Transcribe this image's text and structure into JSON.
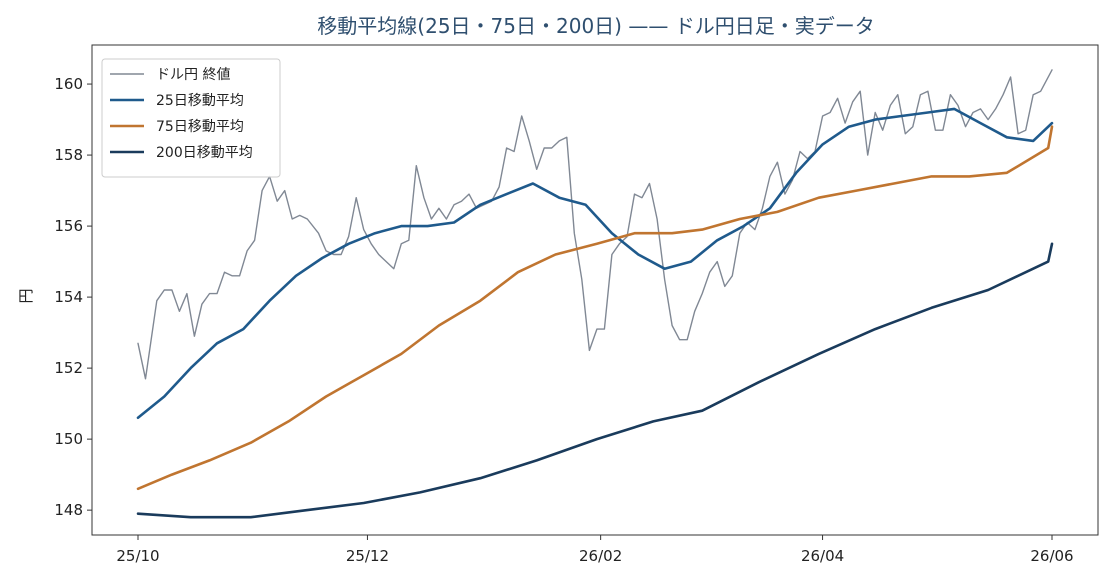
{
  "chart_data": {
    "type": "line",
    "title": "移動平均線(25日・75日・200日) —— ドル円日足・実データ",
    "xlabel": "",
    "ylabel": "円",
    "xlim": [
      "2025-10-01",
      "2026-06-01"
    ],
    "ylim": [
      147.3,
      161.1
    ],
    "x_ticks": [
      "25/10",
      "25/12",
      "26/02",
      "26/04",
      "26/06"
    ],
    "x_tick_dates": [
      "2025-10-01",
      "2025-12-01",
      "2026-02-01",
      "2026-04-01",
      "2026-06-01"
    ],
    "y_ticks": [
      148,
      150,
      152,
      154,
      156,
      158,
      160
    ],
    "grid": false,
    "legend_position": "top-left",
    "series": [
      {
        "name": "ドル円 終値",
        "color": "#808894",
        "x": [
          "2025-10-01",
          "2025-10-03",
          "2025-10-06",
          "2025-10-08",
          "2025-10-10",
          "2025-10-12",
          "2025-10-14",
          "2025-10-16",
          "2025-10-18",
          "2025-10-20",
          "2025-10-22",
          "2025-10-24",
          "2025-10-26",
          "2025-10-28",
          "2025-10-30",
          "2025-11-01",
          "2025-11-03",
          "2025-11-05",
          "2025-11-07",
          "2025-11-09",
          "2025-11-11",
          "2025-11-13",
          "2025-11-15",
          "2025-11-18",
          "2025-11-20",
          "2025-11-22",
          "2025-11-24",
          "2025-11-26",
          "2025-11-28",
          "2025-11-30",
          "2025-12-02",
          "2025-12-04",
          "2025-12-06",
          "2025-12-08",
          "2025-12-10",
          "2025-12-12",
          "2025-12-14",
          "2025-12-16",
          "2025-12-18",
          "2025-12-20",
          "2025-12-22",
          "2025-12-24",
          "2025-12-26",
          "2025-12-28",
          "2025-12-30",
          "2026-01-01",
          "2026-01-03",
          "2026-01-05",
          "2026-01-07",
          "2026-01-09",
          "2026-01-11",
          "2026-01-13",
          "2026-01-15",
          "2026-01-17",
          "2026-01-19",
          "2026-01-21",
          "2026-01-23",
          "2026-01-25",
          "2026-01-27",
          "2026-01-29",
          "2026-01-31",
          "2026-02-02",
          "2026-02-04",
          "2026-02-06",
          "2026-02-08",
          "2026-02-10",
          "2026-02-12",
          "2026-02-14",
          "2026-02-16",
          "2026-02-18",
          "2026-02-20",
          "2026-02-22",
          "2026-02-24",
          "2026-02-26",
          "2026-02-28",
          "2026-03-02",
          "2026-03-04",
          "2026-03-06",
          "2026-03-08",
          "2026-03-10",
          "2026-03-12",
          "2026-03-14",
          "2026-03-16",
          "2026-03-18",
          "2026-03-20",
          "2026-03-22",
          "2026-03-24",
          "2026-03-26",
          "2026-03-28",
          "2026-03-30",
          "2026-04-01",
          "2026-04-03",
          "2026-04-05",
          "2026-04-07",
          "2026-04-09",
          "2026-04-11",
          "2026-04-13",
          "2026-04-15",
          "2026-04-17",
          "2026-04-19",
          "2026-04-21",
          "2026-04-23",
          "2026-04-25",
          "2026-04-27",
          "2026-04-29",
          "2026-05-01",
          "2026-05-03",
          "2026-05-05",
          "2026-05-07",
          "2026-05-09",
          "2026-05-11",
          "2026-05-13",
          "2026-05-15",
          "2026-05-17",
          "2026-05-19",
          "2026-05-21",
          "2026-05-23",
          "2026-05-25",
          "2026-05-27",
          "2026-05-29",
          "2026-06-01"
        ],
        "values": [
          152.7,
          151.7,
          153.9,
          154.2,
          154.2,
          153.6,
          154.1,
          152.9,
          153.8,
          154.1,
          154.1,
          154.7,
          154.6,
          154.6,
          155.3,
          155.6,
          157.0,
          157.4,
          156.7,
          157.0,
          156.2,
          156.3,
          156.2,
          155.8,
          155.3,
          155.2,
          155.2,
          155.7,
          156.8,
          155.9,
          155.5,
          155.2,
          155.0,
          154.8,
          155.5,
          155.6,
          157.7,
          156.8,
          156.2,
          156.5,
          156.2,
          156.6,
          156.7,
          156.9,
          156.5,
          156.6,
          156.7,
          157.1,
          158.2,
          158.1,
          159.1,
          158.4,
          157.6,
          158.2,
          158.2,
          158.4,
          158.5,
          155.8,
          154.5,
          152.5,
          153.1,
          153.1,
          155.2,
          155.5,
          155.7,
          156.9,
          156.8,
          157.2,
          156.2,
          154.5,
          153.2,
          152.8,
          152.8,
          153.6,
          154.1,
          154.7,
          155.0,
          154.3,
          154.6,
          155.8,
          156.1,
          155.9,
          156.5,
          157.4,
          157.8,
          156.9,
          157.3,
          158.1,
          157.9,
          158.1,
          159.1,
          159.2,
          159.6,
          158.9,
          159.5,
          159.8,
          158.0,
          159.2,
          158.7,
          159.4,
          159.7,
          158.6,
          158.8,
          159.7,
          159.8,
          158.7,
          158.7,
          159.7,
          159.4,
          158.8,
          159.2,
          159.3,
          159.0,
          159.3,
          159.7,
          160.2,
          158.6,
          158.7,
          159.7,
          159.8,
          160.4
        ]
      },
      {
        "name": "25日移動平均",
        "color": "#1f5a8c",
        "x": [
          "2025-10-01",
          "2025-10-08",
          "2025-10-15",
          "2025-10-22",
          "2025-10-29",
          "2025-11-05",
          "2025-11-12",
          "2025-11-19",
          "2025-11-26",
          "2025-12-03",
          "2025-12-10",
          "2025-12-17",
          "2025-12-24",
          "2025-12-31",
          "2026-01-07",
          "2026-01-14",
          "2026-01-21",
          "2026-01-28",
          "2026-02-04",
          "2026-02-11",
          "2026-02-18",
          "2026-02-25",
          "2026-03-04",
          "2026-03-11",
          "2026-03-18",
          "2026-03-25",
          "2026-04-01",
          "2026-04-08",
          "2026-04-15",
          "2026-04-22",
          "2026-04-29",
          "2026-05-06",
          "2026-05-13",
          "2026-05-20",
          "2026-05-27",
          "2026-06-01"
        ],
        "values": [
          150.6,
          151.2,
          152.0,
          152.7,
          153.1,
          153.9,
          154.6,
          155.1,
          155.5,
          155.8,
          156.0,
          156.0,
          156.1,
          156.6,
          156.9,
          157.2,
          156.8,
          156.6,
          155.8,
          155.2,
          154.8,
          155.0,
          155.6,
          156.0,
          156.5,
          157.5,
          158.3,
          158.8,
          159.0,
          159.1,
          159.2,
          159.3,
          158.9,
          158.5,
          158.4,
          158.9
        ]
      },
      {
        "name": "75日移動平均",
        "color": "#c07530",
        "x": [
          "2025-10-01",
          "2025-10-10",
          "2025-10-20",
          "2025-10-31",
          "2025-11-10",
          "2025-11-20",
          "2025-11-30",
          "2025-12-10",
          "2025-12-20",
          "2025-12-31",
          "2026-01-10",
          "2026-01-20",
          "2026-01-31",
          "2026-02-10",
          "2026-02-20",
          "2026-02-28",
          "2026-03-10",
          "2026-03-20",
          "2026-03-31",
          "2026-04-10",
          "2026-04-20",
          "2026-04-30",
          "2026-05-10",
          "2026-05-20",
          "2026-05-31",
          "2026-06-01"
        ],
        "values": [
          148.6,
          149.0,
          149.4,
          149.9,
          150.5,
          151.2,
          151.8,
          152.4,
          153.2,
          153.9,
          154.7,
          155.2,
          155.5,
          155.8,
          155.8,
          155.9,
          156.2,
          156.4,
          156.8,
          157.0,
          157.2,
          157.4,
          157.4,
          157.5,
          158.2,
          158.8
        ]
      },
      {
        "name": "200日移動平均",
        "color": "#1a3b5c",
        "x": [
          "2025-10-01",
          "2025-10-15",
          "2025-10-31",
          "2025-11-15",
          "2025-11-30",
          "2025-12-15",
          "2025-12-31",
          "2026-01-15",
          "2026-01-31",
          "2026-02-15",
          "2026-02-28",
          "2026-03-15",
          "2026-03-31",
          "2026-04-15",
          "2026-04-30",
          "2026-05-15",
          "2026-05-31",
          "2026-06-01"
        ],
        "values": [
          147.9,
          147.8,
          147.8,
          148.0,
          148.2,
          148.5,
          148.9,
          149.4,
          150.0,
          150.5,
          150.8,
          151.6,
          152.4,
          153.1,
          153.7,
          154.2,
          155.0,
          155.5
        ]
      }
    ]
  }
}
